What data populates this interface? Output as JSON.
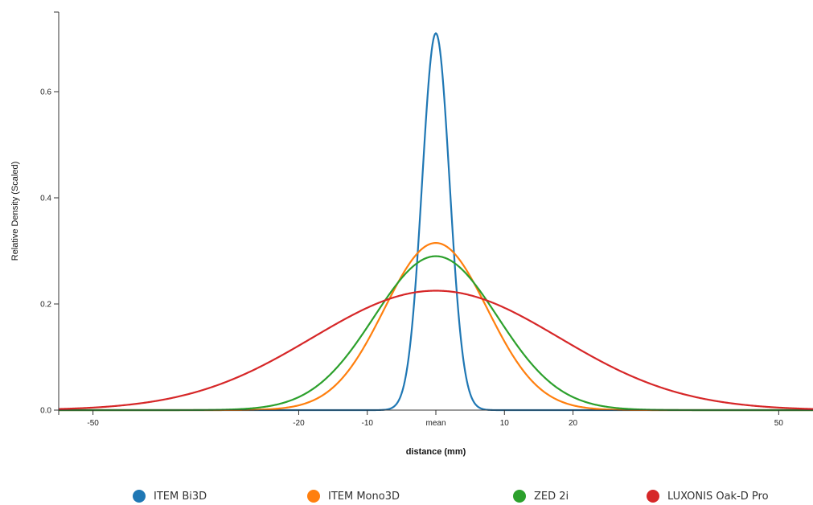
{
  "chart_data": {
    "type": "line",
    "title": "",
    "xlabel": "distance (mm)",
    "ylabel": "Relative Density (Scaled)",
    "xlim": [
      -55,
      55
    ],
    "ylim": [
      0,
      0.75
    ],
    "x_ticks": [
      {
        "value": -50,
        "label": "-50"
      },
      {
        "value": -20,
        "label": "-20"
      },
      {
        "value": -10,
        "label": "-10"
      },
      {
        "value": 0,
        "label": "mean"
      },
      {
        "value": 10,
        "label": "10"
      },
      {
        "value": 20,
        "label": "20"
      },
      {
        "value": 50,
        "label": "50"
      }
    ],
    "y_ticks": [
      {
        "value": 0,
        "label": "0.0"
      },
      {
        "value": 0.2,
        "label": "0.2"
      },
      {
        "value": 0.4,
        "label": "0.4"
      },
      {
        "value": 0.6,
        "label": "0.6"
      }
    ],
    "grid": false,
    "legend_position": "bottom",
    "series": [
      {
        "name": "ITEM Bi3D",
        "color": "#1f77b4",
        "peak": 0.71,
        "std_mm": 2.0
      },
      {
        "name": "ITEM Mono3D",
        "color": "#ff7f0e",
        "peak": 0.315,
        "std_mm": 7.5
      },
      {
        "name": "ZED 2i",
        "color": "#2ca02c",
        "peak": 0.29,
        "std_mm": 9.0
      },
      {
        "name": "LUXONIS Oak-D Pro",
        "color": "#d62728",
        "peak": 0.225,
        "std_mm": 18.0
      }
    ]
  }
}
